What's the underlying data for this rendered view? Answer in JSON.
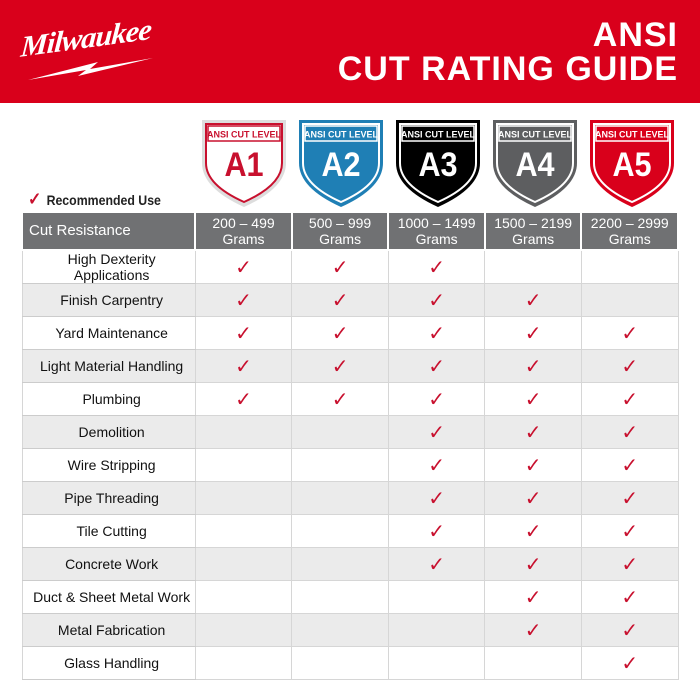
{
  "header": {
    "brand": "Milwaukee",
    "title_line1": "ANSI",
    "title_line2": "CUT RATING GUIDE",
    "brand_color": "#d9001b"
  },
  "shields": [
    {
      "top": "ANSI CUT LEVEL",
      "level": "A1",
      "fill": "#ffffff",
      "text": "#c8102e"
    },
    {
      "top": "ANSI CUT LEVEL",
      "level": "A2",
      "fill": "#1f7fb5",
      "text": "#ffffff"
    },
    {
      "top": "ANSI CUT LEVEL",
      "level": "A3",
      "fill": "#000000",
      "text": "#ffffff"
    },
    {
      "top": "ANSI CUT LEVEL",
      "level": "A4",
      "fill": "#5d5e60",
      "text": "#ffffff"
    },
    {
      "top": "ANSI CUT LEVEL",
      "level": "A5",
      "fill": "#d9001b",
      "text": "#ffffff"
    }
  ],
  "legend": {
    "label": "Recommended Use",
    "icon": "check-icon"
  },
  "table": {
    "header": [
      "Cut Resistance",
      "200 – 499 Grams",
      "500 – 999 Grams",
      "1000 – 1499 Grams",
      "1500 – 2199 Grams",
      "2200 – 2999 Grams"
    ],
    "rows": [
      {
        "label": "High Dexterity Applications",
        "checks": [
          1,
          1,
          1,
          0,
          0
        ]
      },
      {
        "label": "Finish Carpentry",
        "checks": [
          1,
          1,
          1,
          1,
          0
        ]
      },
      {
        "label": "Yard Maintenance",
        "checks": [
          1,
          1,
          1,
          1,
          1
        ]
      },
      {
        "label": "Light Material Handling",
        "checks": [
          1,
          1,
          1,
          1,
          1
        ]
      },
      {
        "label": "Plumbing",
        "checks": [
          1,
          1,
          1,
          1,
          1
        ]
      },
      {
        "label": "Demolition",
        "checks": [
          0,
          0,
          1,
          1,
          1
        ]
      },
      {
        "label": "Wire Stripping",
        "checks": [
          0,
          0,
          1,
          1,
          1
        ]
      },
      {
        "label": "Pipe Threading",
        "checks": [
          0,
          0,
          1,
          1,
          1
        ]
      },
      {
        "label": "Tile Cutting",
        "checks": [
          0,
          0,
          1,
          1,
          1
        ]
      },
      {
        "label": "Concrete Work",
        "checks": [
          0,
          0,
          1,
          1,
          1
        ]
      },
      {
        "label": "Duct & Sheet Metal Work",
        "checks": [
          0,
          0,
          0,
          1,
          1
        ]
      },
      {
        "label": "Metal Fabrication",
        "checks": [
          0,
          0,
          0,
          1,
          1
        ]
      },
      {
        "label": "Glass Handling",
        "checks": [
          0,
          0,
          0,
          0,
          1
        ]
      }
    ]
  }
}
